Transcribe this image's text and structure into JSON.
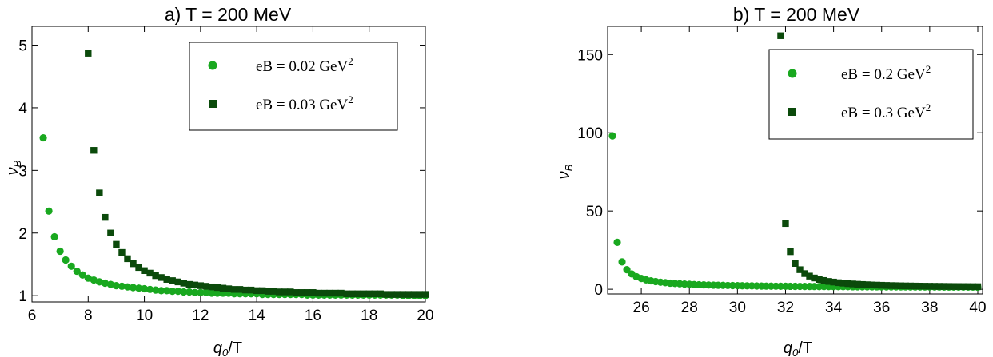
{
  "colors": {
    "series_light": "#19a81f",
    "series_dark": "#0b4a0b",
    "axis": "#000000"
  },
  "chart_data": [
    {
      "type": "scatter",
      "title": "a) T = 200 MeV",
      "xlabel": "q0/T",
      "ylabel": "νB",
      "xlim": [
        6,
        20
      ],
      "ylim": [
        0.9,
        5.3
      ],
      "xticks": [
        6,
        8,
        10,
        12,
        14,
        16,
        18,
        20
      ],
      "xtick_labels": [
        "6",
        "8",
        "10",
        "12",
        "14",
        "16",
        "18",
        "20"
      ],
      "yticks": [
        1,
        2,
        3,
        4,
        5
      ],
      "ytick_labels": [
        "1",
        "2",
        "3",
        "4",
        "5"
      ],
      "legend_position": "top-right",
      "grid": false,
      "series": [
        {
          "name": "eB = 0.02 GeV^2",
          "label_main": "eB = 0.02 GeV",
          "label_sup": "2",
          "marker": "circle",
          "color": "#19a81f",
          "points": [
            [
              6.4,
              3.52
            ],
            [
              6.6,
              2.35
            ],
            [
              6.8,
              1.94
            ],
            [
              7.0,
              1.71
            ],
            [
              7.2,
              1.57
            ],
            [
              7.4,
              1.47
            ],
            [
              7.6,
              1.39
            ],
            [
              7.8,
              1.33
            ],
            [
              8.0,
              1.28
            ],
            [
              8.2,
              1.25
            ],
            [
              8.4,
              1.22
            ],
            [
              8.6,
              1.2
            ],
            [
              8.8,
              1.18
            ],
            [
              9.0,
              1.16
            ],
            [
              9.2,
              1.15
            ],
            [
              9.4,
              1.14
            ],
            [
              9.6,
              1.13
            ],
            [
              9.8,
              1.12
            ],
            [
              10.0,
              1.11
            ],
            [
              10.2,
              1.1
            ],
            [
              10.4,
              1.09
            ],
            [
              10.6,
              1.08
            ],
            [
              10.8,
              1.08
            ],
            [
              11.0,
              1.07
            ],
            [
              11.2,
              1.07
            ],
            [
              11.4,
              1.06
            ],
            [
              11.6,
              1.06
            ],
            [
              11.8,
              1.05
            ],
            [
              12.0,
              1.05
            ],
            [
              12.2,
              1.05
            ],
            [
              12.4,
              1.04
            ],
            [
              12.6,
              1.04
            ],
            [
              12.8,
              1.04
            ],
            [
              13.0,
              1.04
            ],
            [
              13.2,
              1.03
            ],
            [
              13.4,
              1.03
            ],
            [
              13.6,
              1.03
            ],
            [
              13.8,
              1.03
            ],
            [
              14.0,
              1.03
            ],
            [
              14.2,
              1.02
            ],
            [
              14.4,
              1.02
            ],
            [
              14.6,
              1.02
            ],
            [
              14.8,
              1.02
            ],
            [
              15.0,
              1.02
            ],
            [
              15.2,
              1.02
            ],
            [
              15.4,
              1.02
            ],
            [
              15.6,
              1.02
            ],
            [
              15.8,
              1.01
            ],
            [
              16.0,
              1.01
            ],
            [
              16.2,
              1.01
            ],
            [
              16.4,
              1.01
            ],
            [
              16.6,
              1.01
            ],
            [
              16.8,
              1.01
            ],
            [
              17.0,
              1.01
            ],
            [
              17.2,
              1.01
            ],
            [
              17.4,
              1.01
            ],
            [
              17.6,
              1.01
            ],
            [
              17.8,
              1.01
            ],
            [
              18.0,
              1.01
            ],
            [
              18.2,
              1.01
            ],
            [
              18.4,
              1.01
            ],
            [
              18.6,
              1.01
            ],
            [
              18.8,
              1.01
            ],
            [
              19.0,
              1.01
            ],
            [
              19.2,
              1.0
            ],
            [
              19.4,
              1.0
            ],
            [
              19.6,
              1.0
            ],
            [
              19.8,
              1.0
            ],
            [
              20.0,
              1.0
            ]
          ]
        },
        {
          "name": "eB = 0.03 GeV^2",
          "label_main": "eB = 0.03 GeV",
          "label_sup": "2",
          "marker": "square",
          "color": "#0b4a0b",
          "points": [
            [
              8.0,
              4.87
            ],
            [
              8.2,
              3.32
            ],
            [
              8.4,
              2.64
            ],
            [
              8.6,
              2.25
            ],
            [
              8.8,
              2.0
            ],
            [
              9.0,
              1.82
            ],
            [
              9.2,
              1.69
            ],
            [
              9.4,
              1.59
            ],
            [
              9.6,
              1.51
            ],
            [
              9.8,
              1.45
            ],
            [
              10.0,
              1.4
            ],
            [
              10.2,
              1.36
            ],
            [
              10.4,
              1.32
            ],
            [
              10.6,
              1.29
            ],
            [
              10.8,
              1.26
            ],
            [
              11.0,
              1.24
            ],
            [
              11.2,
              1.22
            ],
            [
              11.4,
              1.2
            ],
            [
              11.6,
              1.18
            ],
            [
              11.8,
              1.17
            ],
            [
              12.0,
              1.16
            ],
            [
              12.2,
              1.15
            ],
            [
              12.4,
              1.14
            ],
            [
              12.6,
              1.13
            ],
            [
              12.8,
              1.12
            ],
            [
              13.0,
              1.11
            ],
            [
              13.2,
              1.1
            ],
            [
              13.4,
              1.1
            ],
            [
              13.6,
              1.09
            ],
            [
              13.8,
              1.09
            ],
            [
              14.0,
              1.08
            ],
            [
              14.2,
              1.08
            ],
            [
              14.4,
              1.07
            ],
            [
              14.6,
              1.07
            ],
            [
              14.8,
              1.06
            ],
            [
              15.0,
              1.06
            ],
            [
              15.2,
              1.06
            ],
            [
              15.4,
              1.05
            ],
            [
              15.6,
              1.05
            ],
            [
              15.8,
              1.05
            ],
            [
              16.0,
              1.05
            ],
            [
              16.2,
              1.04
            ],
            [
              16.4,
              1.04
            ],
            [
              16.6,
              1.04
            ],
            [
              16.8,
              1.04
            ],
            [
              17.0,
              1.04
            ],
            [
              17.2,
              1.03
            ],
            [
              17.4,
              1.03
            ],
            [
              17.6,
              1.03
            ],
            [
              17.8,
              1.03
            ],
            [
              18.0,
              1.03
            ],
            [
              18.2,
              1.03
            ],
            [
              18.4,
              1.03
            ],
            [
              18.6,
              1.02
            ],
            [
              18.8,
              1.02
            ],
            [
              19.0,
              1.02
            ],
            [
              19.2,
              1.02
            ],
            [
              19.4,
              1.02
            ],
            [
              19.6,
              1.02
            ],
            [
              19.8,
              1.02
            ],
            [
              20.0,
              1.02
            ]
          ]
        }
      ]
    },
    {
      "type": "scatter",
      "title": "b) T = 200 MeV",
      "xlabel": "q0/T",
      "ylabel": "νB",
      "xlim": [
        24.6,
        40.2
      ],
      "ylim": [
        -3,
        168
      ],
      "xticks": [
        26,
        28,
        30,
        32,
        34,
        36,
        38,
        40
      ],
      "xtick_labels": [
        "26",
        "28",
        "30",
        "32",
        "34",
        "36",
        "38",
        "40"
      ],
      "yticks": [
        0,
        50,
        100,
        150
      ],
      "ytick_labels": [
        "0",
        "50",
        "100",
        "150"
      ],
      "legend_position": "top-right",
      "grid": false,
      "series": [
        {
          "name": "eB = 0.2 GeV^2",
          "label_main": "eB = 0.2 GeV",
          "label_sup": "2",
          "marker": "circle",
          "color": "#19a81f",
          "points": [
            [
              24.8,
              98.0
            ],
            [
              25.0,
              30.0
            ],
            [
              25.2,
              17.5
            ],
            [
              25.4,
              12.5
            ],
            [
              25.6,
              9.8
            ],
            [
              25.8,
              8.0
            ],
            [
              26.0,
              6.9
            ],
            [
              26.2,
              6.0
            ],
            [
              26.4,
              5.4
            ],
            [
              26.6,
              4.9
            ],
            [
              26.8,
              4.5
            ],
            [
              27.0,
              4.2
            ],
            [
              27.2,
              3.9
            ],
            [
              27.4,
              3.7
            ],
            [
              27.6,
              3.5
            ],
            [
              27.8,
              3.3
            ],
            [
              28.0,
              3.2
            ],
            [
              28.2,
              3.0
            ],
            [
              28.4,
              2.9
            ],
            [
              28.6,
              2.8
            ],
            [
              28.8,
              2.7
            ],
            [
              29.0,
              2.6
            ],
            [
              29.2,
              2.55
            ],
            [
              29.4,
              2.5
            ],
            [
              29.6,
              2.4
            ],
            [
              29.8,
              2.35
            ],
            [
              30.0,
              2.3
            ],
            [
              30.2,
              2.25
            ],
            [
              30.4,
              2.2
            ],
            [
              30.6,
              2.15
            ],
            [
              30.8,
              2.1
            ],
            [
              31.0,
              2.05
            ],
            [
              31.2,
              2.0
            ],
            [
              31.4,
              1.98
            ],
            [
              31.6,
              1.95
            ],
            [
              31.8,
              1.92
            ],
            [
              32.0,
              1.9
            ],
            [
              32.2,
              1.87
            ],
            [
              32.4,
              1.85
            ],
            [
              32.6,
              1.82
            ],
            [
              32.8,
              1.8
            ],
            [
              33.0,
              1.78
            ],
            [
              33.2,
              1.76
            ],
            [
              33.4,
              1.74
            ],
            [
              33.6,
              1.72
            ],
            [
              33.8,
              1.7
            ],
            [
              34.0,
              1.68
            ],
            [
              34.2,
              1.66
            ],
            [
              34.4,
              1.65
            ],
            [
              34.6,
              1.63
            ],
            [
              34.8,
              1.62
            ],
            [
              35.0,
              1.6
            ],
            [
              35.2,
              1.59
            ],
            [
              35.4,
              1.58
            ],
            [
              35.6,
              1.56
            ],
            [
              35.8,
              1.55
            ],
            [
              36.0,
              1.54
            ],
            [
              36.2,
              1.53
            ],
            [
              36.4,
              1.52
            ],
            [
              36.6,
              1.51
            ],
            [
              36.8,
              1.5
            ],
            [
              37.0,
              1.49
            ],
            [
              37.2,
              1.48
            ],
            [
              37.4,
              1.47
            ],
            [
              37.6,
              1.46
            ],
            [
              37.8,
              1.45
            ],
            [
              38.0,
              1.44
            ],
            [
              38.2,
              1.44
            ],
            [
              38.4,
              1.43
            ],
            [
              38.6,
              1.42
            ],
            [
              38.8,
              1.41
            ],
            [
              39.0,
              1.41
            ],
            [
              39.2,
              1.4
            ],
            [
              39.4,
              1.39
            ],
            [
              39.6,
              1.39
            ],
            [
              39.8,
              1.38
            ],
            [
              40.0,
              1.37
            ]
          ]
        },
        {
          "name": "eB = 0.3 GeV^2",
          "label_main": "eB = 0.3 GeV",
          "label_sup": "2",
          "marker": "square",
          "color": "#0b4a0b",
          "points": [
            [
              31.8,
              162.0
            ],
            [
              32.0,
              42.0
            ],
            [
              32.2,
              24.0
            ],
            [
              32.4,
              16.5
            ],
            [
              32.6,
              12.5
            ],
            [
              32.8,
              10.0
            ],
            [
              33.0,
              8.4
            ],
            [
              33.2,
              7.2
            ],
            [
              33.4,
              6.3
            ],
            [
              33.6,
              5.6
            ],
            [
              33.8,
              5.0
            ],
            [
              34.0,
              4.6
            ],
            [
              34.2,
              4.2
            ],
            [
              34.4,
              3.9
            ],
            [
              34.6,
              3.6
            ],
            [
              34.8,
              3.4
            ],
            [
              35.0,
              3.2
            ],
            [
              35.2,
              3.05
            ],
            [
              35.4,
              2.9
            ],
            [
              35.6,
              2.75
            ],
            [
              35.8,
              2.65
            ],
            [
              36.0,
              2.55
            ],
            [
              36.2,
              2.45
            ],
            [
              36.4,
              2.35
            ],
            [
              36.6,
              2.3
            ],
            [
              36.8,
              2.22
            ],
            [
              37.0,
              2.15
            ],
            [
              37.2,
              2.1
            ],
            [
              37.4,
              2.05
            ],
            [
              37.6,
              2.0
            ],
            [
              37.8,
              1.96
            ],
            [
              38.0,
              1.92
            ],
            [
              38.2,
              1.88
            ],
            [
              38.4,
              1.85
            ],
            [
              38.6,
              1.82
            ],
            [
              38.8,
              1.79
            ],
            [
              39.0,
              1.76
            ],
            [
              39.2,
              1.74
            ],
            [
              39.4,
              1.71
            ],
            [
              39.6,
              1.69
            ],
            [
              39.8,
              1.67
            ],
            [
              40.0,
              1.65
            ]
          ]
        }
      ]
    }
  ]
}
